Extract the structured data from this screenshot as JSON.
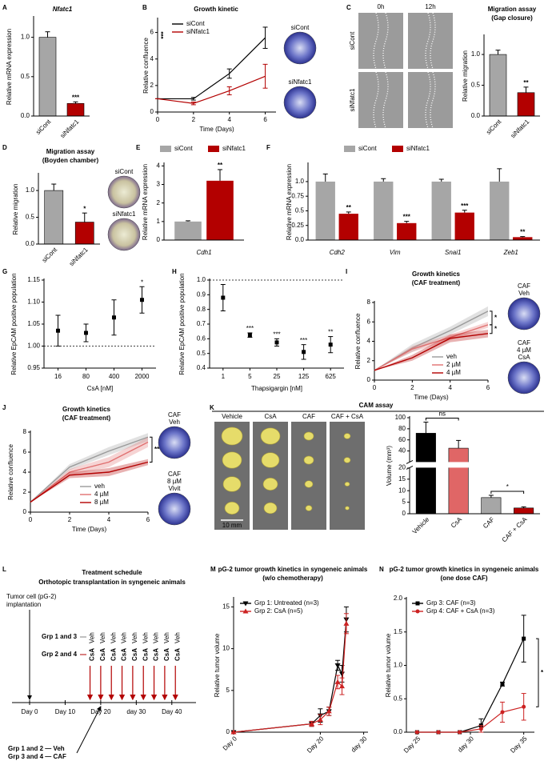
{
  "chart_data": [
    {
      "panel": "A",
      "type": "bar",
      "title": "Nfatc1",
      "ylabel": "Relative mRNA expression",
      "categories": [
        "siCont",
        "siNfatc1"
      ],
      "values": [
        1.0,
        0.16
      ],
      "errors": [
        0.07,
        0.02
      ],
      "colors": [
        "#a6a6a6",
        "#b30000"
      ],
      "ylim": [
        0,
        1.25
      ],
      "yticks": [
        {
          "value": 0,
          "label": "0.0"
        },
        {
          "value": 0.5,
          "label": "0.5"
        },
        {
          "value": 1,
          "label": "1.0"
        }
      ],
      "annotations": [
        null,
        "***"
      ]
    },
    {
      "panel": "B",
      "type": "line",
      "title": "Growth kinetic",
      "xlabel": "Time (Days)",
      "ylabel": "Relative confluence",
      "x": [
        0,
        2,
        4,
        6
      ],
      "xlim": [
        0,
        6.6
      ],
      "xticks": [
        0,
        2,
        4,
        6
      ],
      "ylim": [
        0,
        7
      ],
      "yticks": [
        0,
        2,
        4,
        6
      ],
      "series": [
        {
          "name": "siCont",
          "color": "#000000",
          "values": [
            1,
            1,
            2.9,
            5.6
          ],
          "errors": [
            0,
            0.1,
            0.35,
            0.8
          ]
        },
        {
          "name": "siNfatc1",
          "color": "#b30000",
          "values": [
            1,
            0.65,
            1.6,
            2.7
          ],
          "errors": [
            0,
            0.1,
            0.3,
            0.9
          ]
        }
      ],
      "annotations": [
        "***"
      ],
      "images": [
        {
          "label": [
            "siCont"
          ]
        },
        {
          "label": [
            "siNfatc1"
          ]
        }
      ]
    },
    {
      "panel": "C",
      "type": "bar",
      "title": "Migration assay",
      "subtitle": "(Gap closure)",
      "ylabel": "Relative migration",
      "categories": [
        "siCont",
        "siNfatc1"
      ],
      "values": [
        1.0,
        0.38
      ],
      "errors": [
        0.07,
        0.09
      ],
      "colors": [
        "#a6a6a6",
        "#b30000"
      ],
      "ylim": [
        0,
        1.3
      ],
      "yticks": [
        {
          "value": 0,
          "label": "0.0"
        },
        {
          "value": 0.5,
          "label": "0.5"
        },
        {
          "value": 1,
          "label": "1.0"
        }
      ],
      "annotations": [
        null,
        "**"
      ],
      "image_columns": [
        "0h",
        "12h"
      ],
      "image_rows": [
        "siCont",
        "siNfatc1"
      ]
    },
    {
      "panel": "D",
      "type": "bar",
      "title": "Migration assay",
      "subtitle": "(Boyden chamber)",
      "ylabel": "Relative migration",
      "categories": [
        "siCont",
        "siNfatc1"
      ],
      "values": [
        1.0,
        0.41
      ],
      "errors": [
        0.12,
        0.17
      ],
      "colors": [
        "#a6a6a6",
        "#b30000"
      ],
      "ylim": [
        0,
        1.3
      ],
      "yticks": [
        {
          "value": 0,
          "label": "0.0"
        },
        {
          "value": 0.5,
          "label": "0.5"
        },
        {
          "value": 1,
          "label": "1.0"
        }
      ],
      "annotations": [
        null,
        "*"
      ],
      "images": [
        {
          "label": [
            "siCont"
          ]
        },
        {
          "label": [
            "siNfatc1"
          ]
        }
      ]
    },
    {
      "panel": "E",
      "type": "bar",
      "ylabel": "Relative mRNA expression",
      "categories": [
        "Cdh1"
      ],
      "series": [
        {
          "name": "siCont",
          "color": "#a6a6a6",
          "values": [
            1.0
          ],
          "errors": [
            0.04
          ]
        },
        {
          "name": "siNfatc1",
          "color": "#b30000",
          "values": [
            3.2
          ],
          "errors": [
            0.6
          ]
        }
      ],
      "ylim": [
        0,
        4.1
      ],
      "yticks": [
        0,
        1,
        2,
        3,
        4
      ],
      "annotations": [
        "**"
      ]
    },
    {
      "panel": "F",
      "type": "bar",
      "ylabel": "Relative mRNA expression",
      "categories": [
        "Cdh2",
        "Vim",
        "Snai1",
        "Zeb1"
      ],
      "series": [
        {
          "name": "siCont",
          "color": "#a6a6a6",
          "values": [
            1.0,
            1.0,
            1.0,
            1.0
          ],
          "errors": [
            0.13,
            0.05,
            0.04,
            0.22
          ]
        },
        {
          "name": "siNfatc1",
          "color": "#b30000",
          "values": [
            0.45,
            0.29,
            0.47,
            0.05
          ],
          "errors": [
            0.03,
            0.03,
            0.04,
            0.01
          ]
        }
      ],
      "ylim": [
        0,
        1.3
      ],
      "yticks": [
        {
          "value": 0,
          "label": "0.0"
        },
        0.25,
        0.5,
        0.75,
        {
          "value": 1,
          "label": "1.0"
        }
      ],
      "annotations": [
        "**",
        "***",
        "***",
        "**"
      ]
    },
    {
      "panel": "G",
      "type": "scatter",
      "xlabel": "CsA [nM]",
      "ylabel": "Relative EpCAM positive population",
      "categories": [
        "16",
        "80",
        "400",
        "2000"
      ],
      "values": [
        1.035,
        1.03,
        1.065,
        1.105
      ],
      "errors": [
        0.035,
        0.02,
        0.04,
        0.03
      ],
      "color": "#000000",
      "ylim": [
        0.95,
        1.15
      ],
      "yticks": [
        0.95,
        {
          "value": 1,
          "label": "1.00"
        },
        1.05,
        {
          "value": 1.1,
          "label": "1.10"
        },
        1.15
      ],
      "reference": 1,
      "annotations": [
        null,
        null,
        null,
        "*"
      ]
    },
    {
      "panel": "H",
      "type": "scatter",
      "xlabel": "Thapsigargin [nM]",
      "ylabel": "Relative EpCAM positive population",
      "categories": [
        "1",
        "5",
        "25",
        "125",
        "625"
      ],
      "values": [
        0.88,
        0.625,
        0.575,
        0.51,
        0.56
      ],
      "errors": [
        0.09,
        0.015,
        0.025,
        0.05,
        0.055
      ],
      "color": "#000000",
      "ylim": [
        0.4,
        1.0
      ],
      "yticks": [
        0.4,
        0.5,
        0.6,
        0.7,
        0.8,
        0.9,
        {
          "value": 1,
          "label": "1.0"
        }
      ],
      "reference": 1,
      "annotations": [
        null,
        "***",
        "***",
        "***",
        "**"
      ]
    },
    {
      "panel": "I",
      "type": "line",
      "band": true,
      "title": "Growth kinetics",
      "subtitle": "(CAF treatment)",
      "xlabel": "Time (Days)",
      "ylabel": "Relative confluence",
      "x": [
        0,
        2,
        4,
        6
      ],
      "xlim": [
        0,
        6
      ],
      "xticks": [
        0,
        2,
        4,
        6
      ],
      "ylim": [
        0,
        8
      ],
      "yticks": [
        0,
        2,
        4,
        6,
        8
      ],
      "series": [
        {
          "name": "veh",
          "color": "#9a9a9a",
          "values": [
            1,
            3.3,
            5.1,
            7.1
          ],
          "errors": [
            0,
            0.4,
            0.4,
            0.5
          ]
        },
        {
          "name": "2 µM",
          "color": "#e07070",
          "values": [
            1,
            3.2,
            4.4,
            5.7
          ],
          "errors": [
            0,
            0.3,
            0.3,
            0.3
          ]
        },
        {
          "name": "4 µM",
          "color": "#b30000",
          "values": [
            1,
            2.3,
            4.3,
            4.8
          ],
          "errors": [
            0,
            0.3,
            0.4,
            0.4
          ]
        }
      ],
      "annotations": [
        "*",
        "*"
      ],
      "images": [
        {
          "label": [
            "CAF",
            "Veh"
          ]
        },
        {
          "label": [
            "CAF",
            "4 µM",
            "CsA"
          ]
        }
      ]
    },
    {
      "panel": "J",
      "type": "line",
      "band": true,
      "title": "Growth kinetics",
      "subtitle": "(CAF treatment)",
      "xlabel": "Time (Days)",
      "ylabel": "Relative confluence",
      "x": [
        0,
        2,
        4,
        6
      ],
      "xlim": [
        0,
        6
      ],
      "xticks": [
        0,
        2,
        4,
        6
      ],
      "ylim": [
        0,
        8
      ],
      "yticks": [
        0,
        2,
        4,
        6,
        8
      ],
      "series": [
        {
          "name": "veh",
          "color": "#9a9a9a",
          "values": [
            1,
            4.5,
            6.1,
            7.5
          ],
          "errors": [
            0,
            0.3,
            0.4,
            0.4
          ]
        },
        {
          "name": "4 µM",
          "color": "#e07070",
          "values": [
            1,
            4.0,
            5.0,
            7.0
          ],
          "errors": [
            0,
            0.3,
            0.5,
            0.5
          ]
        },
        {
          "name": "8 µM",
          "color": "#b30000",
          "values": [
            1,
            3.7,
            4.0,
            5.0
          ],
          "errors": [
            0,
            0.3,
            0.4,
            0.3
          ]
        }
      ],
      "annotations": [
        "***"
      ],
      "images": [
        {
          "label": [
            "CAF",
            "Veh"
          ]
        },
        {
          "label": [
            "CAF",
            "8 µM",
            "Vivit"
          ]
        }
      ]
    },
    {
      "panel": "K",
      "type": "bar",
      "title": "CAM assay",
      "ylabel": "Volume (mm³)",
      "categories": [
        "Vehicle",
        "CsA",
        "CAF",
        "CAF + CsA"
      ],
      "values": [
        72,
        45,
        7,
        2.5
      ],
      "errors": [
        20,
        14,
        1,
        0.5
      ],
      "colors": [
        "#000000",
        "#e06666",
        "#a6a6a6",
        "#b30000"
      ],
      "ylim": [
        0,
        100
      ],
      "ysegments": [
        [
          0,
          20
        ],
        [
          20,
          100
        ]
      ],
      "yticks": [
        0,
        5,
        10,
        15,
        20,
        40,
        60,
        80,
        100
      ],
      "annotations": [
        "ns",
        "*"
      ],
      "image_columns": [
        "Vehicle",
        "CsA",
        "CAF",
        "CAF + CsA"
      ],
      "scale_bar": "10 mm"
    },
    {
      "panel": "M",
      "type": "line",
      "title": "pG-2 tumor growth kinetics in syngeneic animals",
      "subtitle": "(w/o chemotherapy)",
      "ylabel": "Relative tumor volume",
      "x": [
        0,
        18,
        20,
        22,
        24,
        25,
        26
      ],
      "xlim": [
        0,
        31
      ],
      "xticks": [
        {
          "value": 0,
          "label": "Day 0"
        },
        {
          "value": 20,
          "label": "Day 20"
        },
        {
          "value": 30,
          "label": "day 30"
        }
      ],
      "ylim": [
        0,
        16
      ],
      "yticks": [
        0,
        5,
        10,
        15
      ],
      "series": [
        {
          "name": "Grp 1: Untreated (n=3)",
          "color": "#000000",
          "marker": "triangle-down",
          "values": [
            0,
            1,
            2,
            2.5,
            8,
            7,
            13.5
          ],
          "errors": [
            0,
            0.3,
            0.8,
            0.5,
            0.6,
            1,
            1.5
          ]
        },
        {
          "name": "Grp 2: CsA (n=5)",
          "color": "#cc2222",
          "marker": "triangle-up",
          "values": [
            0,
            1,
            1.5,
            2.5,
            6,
            5.5,
            13
          ],
          "errors": [
            0,
            0.3,
            0.6,
            0.5,
            0.8,
            1,
            1.2
          ]
        }
      ]
    },
    {
      "panel": "N",
      "type": "line",
      "title": "pG-2 tumor growth kinetics in syngeneic animals",
      "subtitle": "(one dose CAF)",
      "ylabel": "Relative tumor volume",
      "x": [
        25,
        27,
        29,
        31,
        33,
        35
      ],
      "xlim": [
        24,
        36
      ],
      "xticks": [
        {
          "value": 25,
          "label": "Day 25"
        },
        {
          "value": 30,
          "label": "day 30"
        },
        {
          "value": 35,
          "label": "Day 35"
        }
      ],
      "ylim": [
        0,
        2
      ],
      "yticks": [
        {
          "value": 0,
          "label": "0.0"
        },
        0.5,
        {
          "value": 1,
          "label": "1.0"
        },
        1.5,
        {
          "value": 2,
          "label": "2.0"
        }
      ],
      "series": [
        {
          "name": "Grp 3: CAF (n=3)",
          "color": "#000000",
          "marker": "square",
          "values": [
            0,
            0,
            0,
            0.1,
            0.72,
            1.4
          ],
          "errors": [
            0,
            0,
            0,
            0.1,
            0.03,
            0.35
          ]
        },
        {
          "name": "Grp 4: CAF + CsA (n=3)",
          "color": "#cc2222",
          "marker": "circle",
          "values": [
            0,
            0,
            0,
            0.05,
            0.3,
            0.38
          ],
          "errors": [
            0,
            0,
            0,
            0.05,
            0.15,
            0.2
          ]
        }
      ],
      "annotations": [
        "*"
      ]
    }
  ],
  "schedule": {
    "panel": "L",
    "title": "Treatment schedule",
    "subtitle": "Orthotopic transplantation in syngeneic animals",
    "implantation": [
      "Tumor cell (pG-2)",
      "implantation"
    ],
    "groups": [
      {
        "name": "Grp 1 and 3",
        "treatment": "Veh",
        "color": "#808080"
      },
      {
        "name": "Grp 2 and 4",
        "treatment": "CsA",
        "color": "#b30000"
      }
    ],
    "dose_days": [
      17,
      20,
      23,
      26,
      29,
      32,
      35,
      38,
      41
    ],
    "xlim": [
      0,
      45
    ],
    "xticks": [
      {
        "value": 0,
        "label": "Day 0"
      },
      {
        "value": 10,
        "label": "Day 10"
      },
      {
        "value": 20,
        "label": "Day 20"
      },
      {
        "value": 30,
        "label": "day 30"
      },
      {
        "value": 40,
        "label": "Day 40"
      }
    ],
    "caf_day": 20,
    "footnotes": [
      "Grp 1 and 2 — Veh",
      "Grp 3 and 4 — CAF"
    ]
  }
}
